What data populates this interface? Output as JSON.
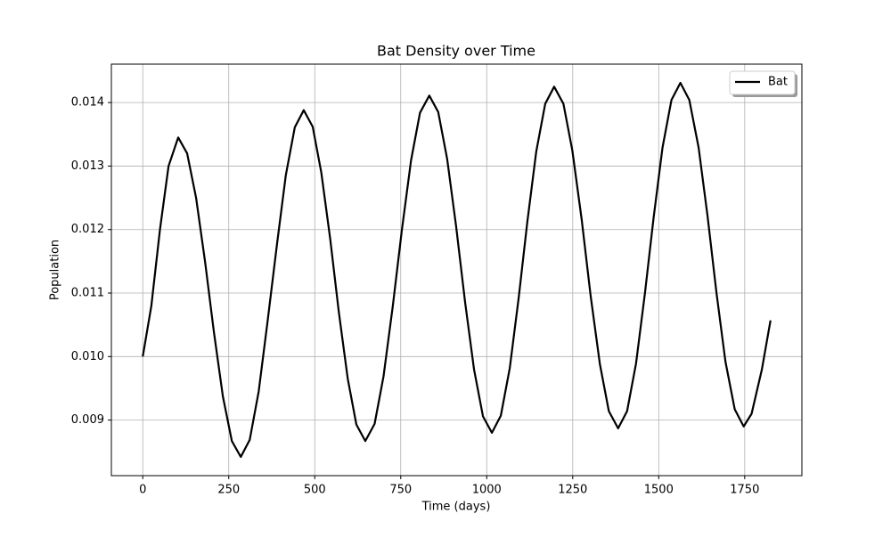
{
  "chart_data": {
    "type": "line",
    "title": "Bat Density over Time",
    "xlabel": "Time (days)",
    "ylabel": "Population",
    "x": [
      0,
      25,
      50,
      75,
      103,
      129,
      155,
      181,
      207,
      233,
      259,
      285,
      311,
      337,
      363,
      390,
      416,
      442,
      468,
      494,
      519,
      545,
      570,
      596,
      621,
      647,
      674,
      700,
      727,
      753,
      780,
      806,
      833,
      859,
      885,
      911,
      937,
      963,
      989,
      1015,
      1041,
      1067,
      1093,
      1118,
      1144,
      1170,
      1196,
      1223,
      1249,
      1276,
      1302,
      1329,
      1355,
      1382,
      1408,
      1434,
      1460,
      1485,
      1511,
      1537,
      1563,
      1589,
      1616,
      1642,
      1668,
      1694,
      1721,
      1747,
      1770,
      1800,
      1825
    ],
    "series": [
      {
        "name": "Bat",
        "color": "#000000",
        "values": [
          0.01,
          0.0108,
          0.012,
          0.013,
          0.01345,
          0.0132,
          0.0125,
          0.0115,
          0.01038,
          0.00937,
          0.00867,
          0.00842,
          0.00869,
          0.00945,
          0.01056,
          0.01176,
          0.01286,
          0.01361,
          0.01388,
          0.01362,
          0.0129,
          0.01185,
          0.0107,
          0.00965,
          0.00893,
          0.00867,
          0.00894,
          0.00969,
          0.0108,
          0.01198,
          0.01309,
          0.01384,
          0.01411,
          0.01385,
          0.01311,
          0.01205,
          0.01086,
          0.0098,
          0.00906,
          0.0088,
          0.00907,
          0.00982,
          0.01093,
          0.01212,
          0.01323,
          0.01398,
          0.01425,
          0.01398,
          0.01324,
          0.01216,
          0.01096,
          0.00988,
          0.00914,
          0.00887,
          0.00914,
          0.00989,
          0.011,
          0.01218,
          0.01329,
          0.01404,
          0.01431,
          0.01404,
          0.01329,
          0.01221,
          0.011,
          0.00992,
          0.00917,
          0.0089,
          0.0091,
          0.0098,
          0.01057
        ]
      }
    ],
    "xlim": [
      -91.25,
      1916.25
    ],
    "ylim": [
      0.008125,
      0.014605
    ],
    "xticks": [
      0,
      250,
      500,
      750,
      1000,
      1250,
      1500,
      1750
    ],
    "yticks": [
      0.009,
      {
        "value": 0.01,
        "label": "0.010"
      },
      0.011,
      0.012,
      0.013,
      0.014
    ],
    "grid": true,
    "legend": "upper right"
  }
}
